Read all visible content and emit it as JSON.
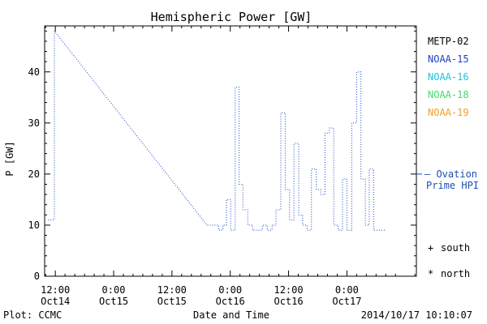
{
  "chart_data": {
    "type": "line",
    "title": "Hemispheric Power [GW]",
    "xlabel": "Date and Time",
    "ylabel": "P [GW]",
    "ylim": [
      0,
      49
    ],
    "yticks": [
      0,
      10,
      20,
      30,
      40
    ],
    "xticks": [
      {
        "top": "12:00",
        "bottom": "Oct14"
      },
      {
        "top": "0:00",
        "bottom": "Oct15"
      },
      {
        "top": "12:00",
        "bottom": "Oct15"
      },
      {
        "top": "0:00",
        "bottom": "Oct16"
      },
      {
        "top": "12:00",
        "bottom": "Oct16"
      },
      {
        "top": "0:00",
        "bottom": "Oct17"
      }
    ],
    "xaxis_hours": {
      "min": -2.2,
      "max": 74.3,
      "ticks": [
        0,
        12,
        24,
        36,
        48,
        60
      ]
    },
    "legend": [
      {
        "name": "METP-02",
        "color": "#000000"
      },
      {
        "name": "NOAA-15",
        "color": "#1f3fbf"
      },
      {
        "name": "NOAA-16",
        "color": "#22c4d8"
      },
      {
        "name": "NOAA-18",
        "color": "#3ddc6a"
      },
      {
        "name": "NOAA-19",
        "color": "#f0a020"
      }
    ],
    "series": [
      {
        "name": "NOAA-15",
        "color": "#2a55c8",
        "points": [
          [
            -1.5,
            11
          ],
          [
            -0.2,
            11
          ],
          [
            -0.2,
            48
          ],
          [
            31.2,
            10
          ],
          [
            33.6,
            10
          ],
          [
            33.6,
            9
          ],
          [
            34.5,
            9
          ],
          [
            34.5,
            10
          ],
          [
            35.2,
            10
          ],
          [
            35.2,
            15
          ],
          [
            36.1,
            15
          ],
          [
            36.1,
            9
          ],
          [
            37.0,
            9
          ],
          [
            37.0,
            37
          ],
          [
            37.8,
            37
          ],
          [
            37.8,
            18
          ],
          [
            38.6,
            18
          ],
          [
            38.6,
            13
          ],
          [
            39.6,
            13
          ],
          [
            39.6,
            10
          ],
          [
            40.6,
            10
          ],
          [
            40.6,
            9
          ],
          [
            42.6,
            9
          ],
          [
            42.6,
            10
          ],
          [
            43.6,
            10
          ],
          [
            43.6,
            9
          ],
          [
            44.6,
            9
          ],
          [
            44.6,
            10
          ],
          [
            45.4,
            10
          ],
          [
            45.4,
            13
          ],
          [
            46.4,
            13
          ],
          [
            46.4,
            32
          ],
          [
            47.3,
            32
          ],
          [
            47.3,
            17
          ],
          [
            48.2,
            17
          ],
          [
            48.2,
            11
          ],
          [
            49.1,
            11
          ],
          [
            49.1,
            26
          ],
          [
            50.1,
            26
          ],
          [
            50.1,
            12
          ],
          [
            50.9,
            12
          ],
          [
            50.9,
            10
          ],
          [
            51.8,
            10
          ],
          [
            51.8,
            9
          ],
          [
            52.7,
            9
          ],
          [
            52.7,
            21
          ],
          [
            53.7,
            21
          ],
          [
            53.7,
            17
          ],
          [
            54.6,
            17
          ],
          [
            54.6,
            16
          ],
          [
            55.5,
            16
          ],
          [
            55.5,
            28
          ],
          [
            56.4,
            28
          ],
          [
            56.4,
            29
          ],
          [
            57.3,
            29
          ],
          [
            57.3,
            10
          ],
          [
            58.2,
            10
          ],
          [
            58.2,
            9
          ],
          [
            59.1,
            9
          ],
          [
            59.1,
            19
          ],
          [
            60.0,
            19
          ],
          [
            60.0,
            9
          ],
          [
            61.0,
            9
          ],
          [
            61.0,
            30
          ],
          [
            62.0,
            30
          ],
          [
            62.0,
            40
          ],
          [
            62.9,
            40
          ],
          [
            62.9,
            19
          ],
          [
            63.8,
            19
          ],
          [
            63.8,
            10
          ],
          [
            64.6,
            10
          ],
          [
            64.6,
            21
          ],
          [
            65.5,
            21
          ],
          [
            65.5,
            9
          ],
          [
            67.8,
            9
          ]
        ]
      }
    ],
    "hpi": {
      "value": 20,
      "label_line1": "– Ovation",
      "label_line2": "Prime HPI",
      "color": "#1a4fb0"
    },
    "symbols": [
      {
        "marker": "+",
        "label": "south"
      },
      {
        "marker": "*",
        "label": "north"
      }
    ],
    "footer_left": "Plot: CCMC",
    "footer_right": "2014/10/17 10:10:07"
  }
}
